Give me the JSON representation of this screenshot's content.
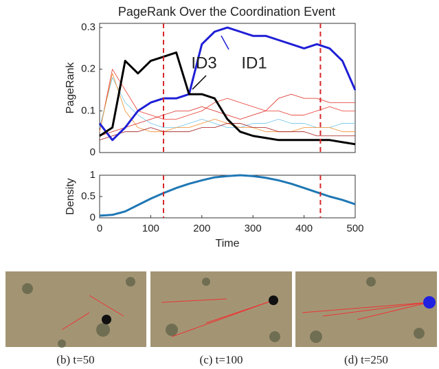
{
  "chart_data": [
    {
      "type": "line",
      "title": "PageRank Over the Coordination Event",
      "ylabel": "PageRank",
      "x": [
        0,
        25,
        50,
        75,
        100,
        125,
        150,
        175,
        200,
        225,
        250,
        275,
        300,
        325,
        350,
        375,
        400,
        425,
        450,
        475,
        500
      ],
      "series": [
        {
          "color": "#e8392e",
          "width": 0.8,
          "values": [
            0.05,
            0.2,
            0.15,
            0.1,
            0.09,
            0.08,
            0.08,
            0.09,
            0.1,
            0.12,
            0.13,
            0.12,
            0.11,
            0.1,
            0.1,
            0.09,
            0.09,
            0.1,
            0.11,
            0.1,
            0.1
          ]
        },
        {
          "color": "#d9251c",
          "width": 0.8,
          "values": [
            0.04,
            0.05,
            0.06,
            0.07,
            0.08,
            0.09,
            0.1,
            0.1,
            0.11,
            0.1,
            0.09,
            0.08,
            0.09,
            0.1,
            0.13,
            0.14,
            0.13,
            0.13,
            0.12,
            0.12,
            0.12
          ]
        },
        {
          "color": "#6fc3e8",
          "width": 0.8,
          "values": [
            0.06,
            0.18,
            0.12,
            0.09,
            0.07,
            0.06,
            0.06,
            0.07,
            0.08,
            0.07,
            0.06,
            0.06,
            0.07,
            0.07,
            0.08,
            0.07,
            0.07,
            0.06,
            0.06,
            0.07,
            0.07
          ]
        },
        {
          "color": "#f28c28",
          "width": 0.8,
          "values": [
            0.05,
            0.19,
            0.1,
            0.06,
            0.05,
            0.05,
            0.06,
            0.06,
            0.07,
            0.08,
            0.07,
            0.06,
            0.06,
            0.05,
            0.05,
            0.05,
            0.06,
            0.06,
            0.06,
            0.05,
            0.05
          ]
        },
        {
          "color": "#a31515",
          "width": 0.8,
          "values": [
            0.03,
            0.04,
            0.05,
            0.05,
            0.06,
            0.05,
            0.05,
            0.05,
            0.06,
            0.06,
            0.07,
            0.07,
            0.06,
            0.06,
            0.05,
            0.05,
            0.05,
            0.04,
            0.04,
            0.04,
            0.04
          ]
        },
        {
          "name": "ID1",
          "color": "#1f1fd6",
          "width": 3,
          "values": [
            0.07,
            0.03,
            0.06,
            0.1,
            0.12,
            0.13,
            0.13,
            0.14,
            0.26,
            0.29,
            0.3,
            0.29,
            0.28,
            0.28,
            0.27,
            0.26,
            0.25,
            0.26,
            0.25,
            0.22,
            0.15
          ]
        },
        {
          "name": "ID3",
          "color": "#000000",
          "width": 3,
          "values": [
            0.04,
            0.06,
            0.22,
            0.19,
            0.22,
            0.23,
            0.24,
            0.14,
            0.14,
            0.13,
            0.08,
            0.05,
            0.04,
            0.035,
            0.03,
            0.03,
            0.03,
            0.03,
            0.03,
            0.025,
            0.02
          ]
        }
      ],
      "xlim": [
        0,
        500
      ],
      "ylim": [
        0,
        0.31
      ],
      "yticks": [
        0,
        0.1,
        0.2,
        0.3
      ],
      "vlines": [
        125,
        432
      ],
      "vline_color": "#d62728"
    },
    {
      "type": "line",
      "ylabel": "Density",
      "xlabel": "Time",
      "x": [
        0,
        25,
        50,
        75,
        100,
        125,
        150,
        175,
        200,
        225,
        250,
        275,
        300,
        325,
        350,
        375,
        400,
        425,
        450,
        475,
        500
      ],
      "series": [
        {
          "color": "#1f77b4",
          "width": 3,
          "values": [
            0.05,
            0.07,
            0.15,
            0.3,
            0.45,
            0.58,
            0.7,
            0.8,
            0.88,
            0.95,
            0.98,
            1.0,
            0.98,
            0.94,
            0.88,
            0.8,
            0.7,
            0.6,
            0.5,
            0.42,
            0.32
          ]
        }
      ],
      "xlim": [
        0,
        500
      ],
      "ylim": [
        0,
        1
      ],
      "xticks": [
        0,
        100,
        200,
        300,
        400,
        500
      ],
      "yticks": [
        0,
        0.5,
        1
      ],
      "vlines": [
        125,
        432
      ],
      "vline_color": "#d62728"
    }
  ],
  "captions": [
    "(b) t=50",
    "(c) t=100",
    "(d) t=250"
  ]
}
